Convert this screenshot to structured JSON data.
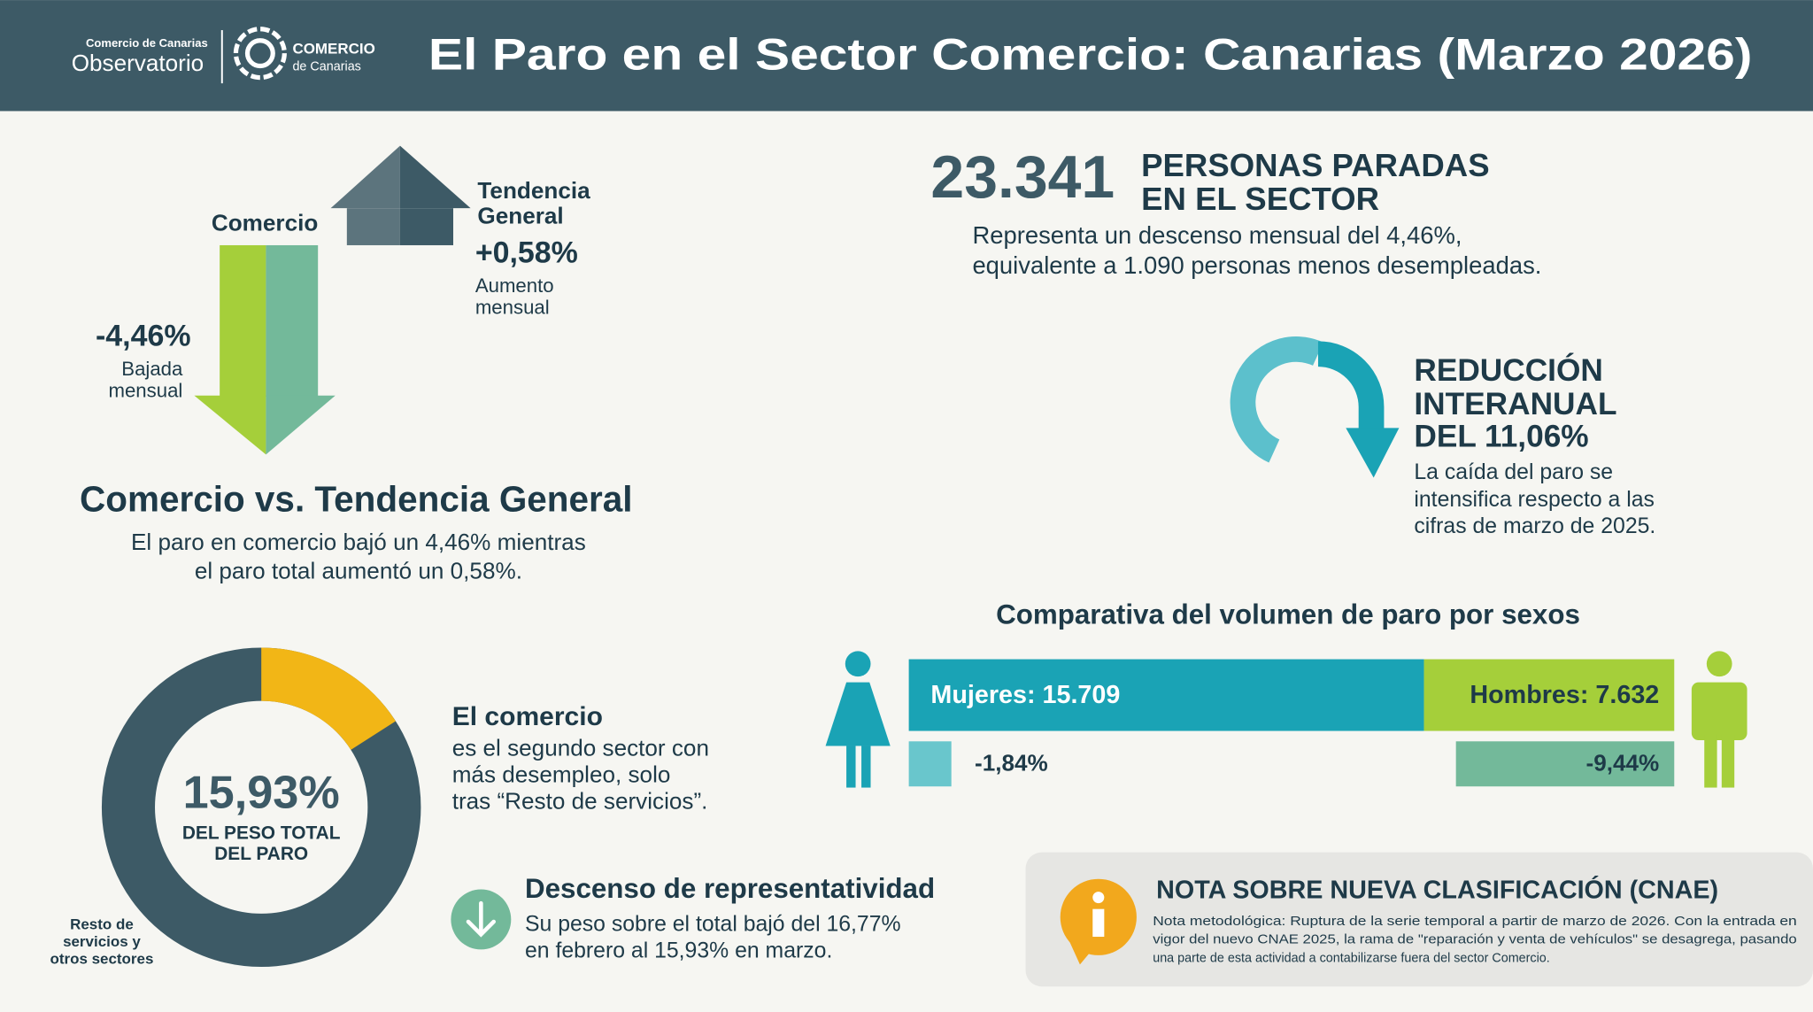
{
  "header": {
    "org_small": "Comercio de Canarias",
    "org": "Observatorio",
    "logo_top": "COMERCIO",
    "logo_bottom": "de Canarias",
    "title": "El Paro en el Sector Comercio: Canarias (Marzo 2026)"
  },
  "arrows": {
    "comercio": {
      "label": "Comercio",
      "value": "-4,46%",
      "caption": [
        "Bajada",
        "mensual"
      ]
    },
    "general": {
      "label": [
        "Tendencia",
        "General"
      ],
      "value": "+0,58%",
      "caption": [
        "Aumento",
        "mensual"
      ]
    }
  },
  "comparison": {
    "title": "Comercio vs. Tendencia General",
    "text": [
      "El paro en comercio bajó un 4,46% mientras",
      "el paro total aumentó un 0,58%."
    ]
  },
  "donut": {
    "value": 15.93,
    "label": "15,93%",
    "caption": [
      "DEL PESO TOTAL",
      "DEL PARO"
    ],
    "rest": [
      "Resto de",
      "servicios y",
      "otros sectores"
    ]
  },
  "ranking": {
    "title": "El comercio",
    "text": [
      "es el segundo sector con",
      "más desempleo, solo",
      "tras “Resto de servicios”."
    ]
  },
  "decline": {
    "title": "Descenso de representatividad",
    "text": [
      "Su peso sobre el total bajó del 16,77%",
      "en febrero al 15,93% en marzo."
    ]
  },
  "total": {
    "value": "23.341",
    "label": [
      "PERSONAS PARADAS",
      "EN EL SECTOR"
    ],
    "text": [
      "Representa un descenso mensual del 4,46%,",
      "equivalente a 1.090 personas menos desempleadas."
    ]
  },
  "annual": {
    "title": [
      "REDUCCIÓN",
      "INTERANUAL",
      "DEL 11,06%"
    ],
    "text": [
      "La caída del paro se",
      "intensifica respecto a las",
      "cifras de marzo de 2025."
    ]
  },
  "sexes": {
    "title": "Comparativa del volumen de paro por sexos",
    "women": {
      "label": "Mujeres: 15.709",
      "value": 15709,
      "change": -1.84,
      "change_label": "-1,84%"
    },
    "men": {
      "label": "Hombres: 7.632",
      "value": 7632,
      "change": -9.44,
      "change_label": "-9,44%"
    }
  },
  "note": {
    "title": "NOTA SOBRE NUEVA CLASIFICACIÓN (CNAE)",
    "text": [
      "Nota metodológica: Ruptura de la serie temporal a partir de marzo de 2026. Con la entrada en",
      "vigor del nuevo CNAE 2025, la rama de \"reparación y venta de vehículos\" se desagrega, pasando",
      "una parte de esta actividad a contabilizarse fuera del sector Comercio."
    ]
  }
}
